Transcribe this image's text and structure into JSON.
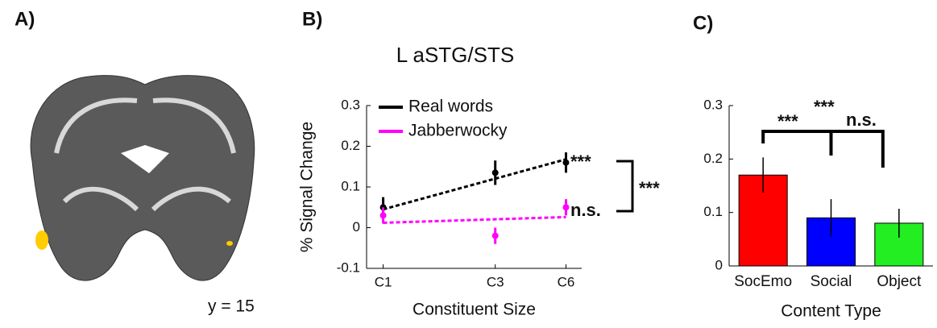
{
  "panel_a": {
    "label": "A)",
    "caption": "y = 15"
  },
  "chart_data": [
    {
      "type": "line",
      "panel_label": "B)",
      "title": "L aSTG/STS",
      "x_label": "Constituent Size",
      "y_label": "% Signal Change",
      "x": [
        1,
        3,
        6
      ],
      "log_x": true,
      "xlim": [
        0.85,
        7
      ],
      "xticks": [
        {
          "value": 1,
          "label": "C1"
        },
        {
          "value": 3,
          "label": "C3"
        },
        {
          "value": 6,
          "label": "C6"
        }
      ],
      "ylim": [
        -0.1,
        0.3
      ],
      "yticks": [
        -0.1,
        0,
        0.1,
        0.2,
        0.3
      ],
      "series": [
        {
          "name": "Real words",
          "color": "#000000",
          "values": [
            0.05,
            0.135,
            0.16
          ],
          "errors": [
            0.025,
            0.03,
            0.025
          ],
          "fit": [
            0.045,
            0.168
          ]
        },
        {
          "name": "Jabberwocky",
          "color": "#ff00ff",
          "values": [
            0.03,
            -0.02,
            0.05
          ],
          "errors": [
            0.02,
            0.02,
            0.02
          ],
          "fit": [
            0.012,
            0.026
          ]
        }
      ],
      "annotations": [
        "***",
        "n.s.",
        "***"
      ]
    },
    {
      "type": "bar",
      "panel_label": "C)",
      "x_label": "Content Type",
      "categories": [
        "SocEmo",
        "Social",
        "Object"
      ],
      "values": [
        0.17,
        0.09,
        0.08
      ],
      "errors": [
        0.033,
        0.035,
        0.027
      ],
      "colors": [
        "#ff0000",
        "#0000ff",
        "#22ee22"
      ],
      "ylim": [
        0,
        0.3
      ],
      "yticks": [
        0,
        0.1,
        0.2,
        0.3
      ],
      "annotations": [
        "***",
        "***",
        "n.s."
      ]
    }
  ]
}
